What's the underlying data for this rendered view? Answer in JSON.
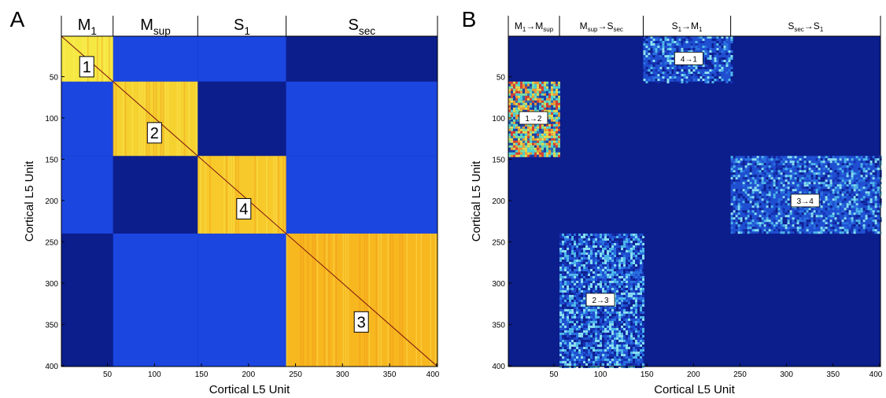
{
  "chart_data": [
    {
      "type": "heatmap",
      "panel_letter": "A",
      "xlabel": "Cortical L5 Unit",
      "ylabel": "Cortical L5 Unit",
      "xlim": [
        1,
        400
      ],
      "ylim": [
        1,
        400
      ],
      "x_ticks": [
        50,
        100,
        150,
        200,
        250,
        300,
        350,
        400
      ],
      "y_ticks": [
        50,
        100,
        150,
        200,
        250,
        300,
        350,
        400
      ],
      "groups": [
        {
          "base": "M",
          "sub": "1",
          "start": 1,
          "end": 55
        },
        {
          "base": "M",
          "sub": "sup",
          "start": 56,
          "end": 145
        },
        {
          "base": "S",
          "sub": "1",
          "start": 146,
          "end": 239
        },
        {
          "base": "S",
          "sub": "sec",
          "start": 240,
          "end": 400
        }
      ],
      "blocks": [
        {
          "label": "1",
          "x": [
            1,
            55
          ],
          "y": [
            1,
            55
          ],
          "color": "#f6e842",
          "label_at": [
            28,
            38
          ]
        },
        {
          "label": "2",
          "x": [
            56,
            145
          ],
          "y": [
            56,
            145
          ],
          "color": "#f5d230",
          "label_at": [
            100,
            118
          ]
        },
        {
          "label": "4",
          "x": [
            146,
            239
          ],
          "y": [
            146,
            239
          ],
          "color": "#f7c92a",
          "label_at": [
            195,
            210
          ]
        },
        {
          "label": "3",
          "x": [
            240,
            400
          ],
          "y": [
            240,
            400
          ],
          "color": "#f7b71f",
          "label_at": [
            320,
            347
          ]
        }
      ],
      "colors": {
        "background": "#0b1e8c",
        "mid": "#1c46e0",
        "diagonal": "#7a1010"
      }
    },
    {
      "type": "heatmap",
      "panel_letter": "B",
      "xlabel": "Cortical L5 Unit",
      "ylabel": "Cortical L5 Unit",
      "xlim": [
        1,
        400
      ],
      "ylim": [
        1,
        400
      ],
      "x_ticks": [
        50,
        100,
        150,
        200,
        250,
        300,
        350,
        400
      ],
      "y_ticks": [
        50,
        100,
        150,
        200,
        250,
        300,
        350,
        400
      ],
      "groups": [
        {
          "from_base": "M",
          "from_sub": "1",
          "to_base": "M",
          "to_sub": "sup",
          "start": 1,
          "end": 55
        },
        {
          "from_base": "M",
          "from_sub": "sup",
          "to_base": "S",
          "to_sub": "sec",
          "start": 56,
          "end": 145
        },
        {
          "from_base": "S",
          "from_sub": "1",
          "to_base": "M",
          "to_sub": "1",
          "start": 146,
          "end": 239
        },
        {
          "from_base": "S",
          "from_sub": "sec",
          "to_base": "S",
          "to_sub": "1",
          "start": 240,
          "end": 400
        }
      ],
      "blocks": [
        {
          "label": "1→2",
          "x": [
            1,
            55
          ],
          "y": [
            56,
            145
          ],
          "style": "hot",
          "label_at": [
            28,
            100
          ]
        },
        {
          "label": "4→1",
          "x": [
            146,
            239
          ],
          "y": [
            1,
            55
          ],
          "style": "cool",
          "label_at": [
            195,
            28
          ]
        },
        {
          "label": "3→4",
          "x": [
            240,
            400
          ],
          "y": [
            146,
            239
          ],
          "style": "cool",
          "label_at": [
            320,
            200
          ]
        },
        {
          "label": "2→3",
          "x": [
            56,
            145
          ],
          "y": [
            240,
            400
          ],
          "style": "cool",
          "label_at": [
            100,
            320
          ]
        }
      ],
      "colors": {
        "background": "#0b1e8c"
      }
    }
  ]
}
